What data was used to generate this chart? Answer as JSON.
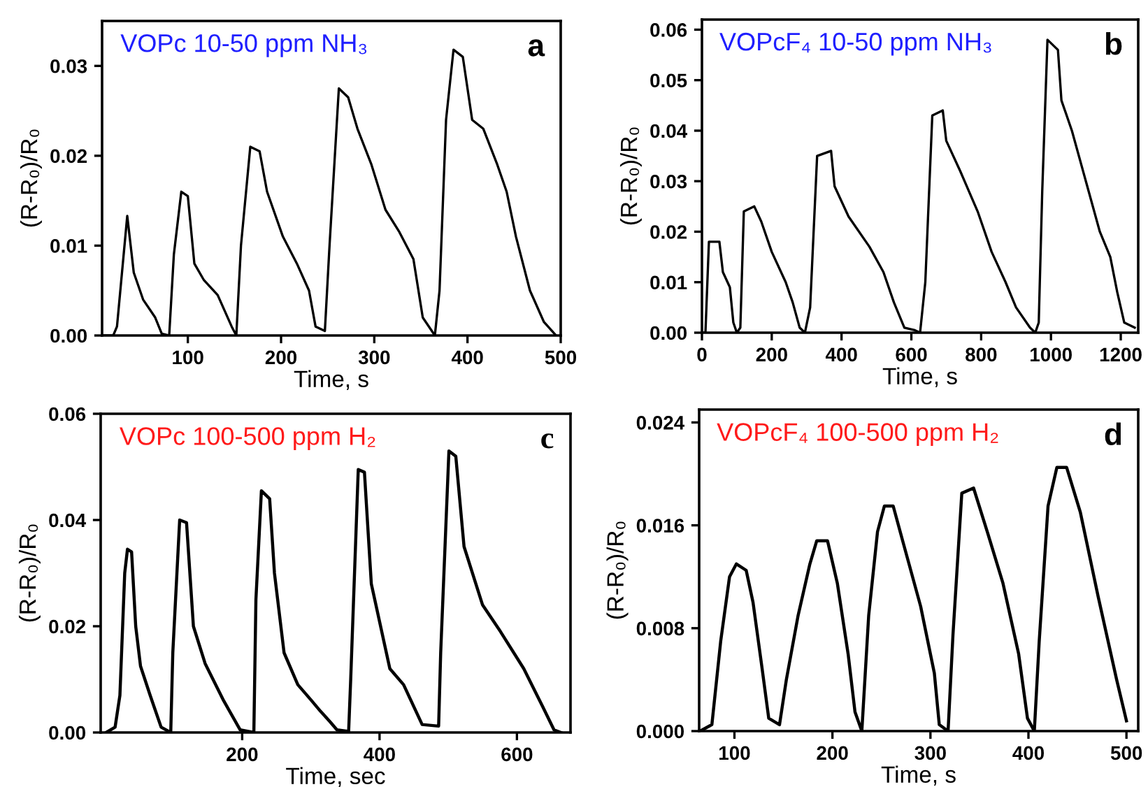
{
  "chart_data": [
    {
      "type": "line",
      "title": "VOPc 10-50 ppm NH₃",
      "annotations": [
        "a"
      ],
      "xlabel": "Time, s",
      "ylabel": "(R-R₀)/R₀",
      "xlim": [
        8,
        500
      ],
      "xticks": [
        100,
        200,
        300,
        400,
        500
      ],
      "ylim": [
        0,
        0.035
      ],
      "yticks": [
        {
          "value": 0,
          "label": "0.00"
        },
        {
          "value": 0.01,
          "label": "0.01"
        },
        {
          "value": 0.02,
          "label": "0.02"
        },
        {
          "value": 0.03,
          "label": "0.03"
        }
      ],
      "grid": false,
      "legend": false,
      "series": [
        {
          "color": "#000000",
          "x": [
            10,
            20,
            24,
            35,
            42,
            52,
            65,
            72,
            80,
            85,
            93,
            100,
            107,
            117,
            132,
            147,
            152,
            157,
            167,
            177,
            185,
            202,
            217,
            230,
            237,
            247,
            252,
            262,
            272,
            282,
            297,
            312,
            327,
            342,
            352,
            365,
            370,
            377,
            385,
            395,
            405,
            417,
            432,
            442,
            452,
            467,
            482,
            495
          ],
          "values": [
            0,
            0,
            0.001,
            0.0133,
            0.007,
            0.004,
            0.002,
            0.0002,
            0,
            0.009,
            0.016,
            0.0155,
            0.008,
            0.0062,
            0.0045,
            0.001,
            0,
            0.01,
            0.021,
            0.0205,
            0.016,
            0.011,
            0.008,
            0.005,
            0.001,
            0.0005,
            0.01,
            0.0275,
            0.0265,
            0.023,
            0.019,
            0.014,
            0.0115,
            0.0085,
            0.002,
            0,
            0.005,
            0.024,
            0.0318,
            0.031,
            0.024,
            0.023,
            0.019,
            0.016,
            0.011,
            0.005,
            0.0015,
            0
          ]
        }
      ]
    },
    {
      "type": "line",
      "title": "VOPcF₄ 10-50 ppm NH₃",
      "annotations": [
        "b"
      ],
      "xlabel": "Time, s",
      "ylabel": "(R-R₀)/R₀",
      "xlim": [
        0,
        1250
      ],
      "xticks": [
        0,
        200,
        400,
        600,
        800,
        1000,
        1200
      ],
      "ylim": [
        0,
        0.062
      ],
      "yticks": [
        {
          "value": 0,
          "label": "0.00"
        },
        {
          "value": 0.01,
          "label": "0.01"
        },
        {
          "value": 0.02,
          "label": "0.02"
        },
        {
          "value": 0.03,
          "label": "0.03"
        },
        {
          "value": 0.04,
          "label": "0.04"
        },
        {
          "value": 0.05,
          "label": "0.05"
        },
        {
          "value": 0.06,
          "label": "0.06"
        }
      ],
      "grid": false,
      "legend": false,
      "series": [
        {
          "color": "#000000",
          "x": [
            0,
            10,
            20,
            50,
            60,
            80,
            90,
            100,
            110,
            120,
            150,
            170,
            200,
            240,
            260,
            280,
            295,
            310,
            330,
            370,
            380,
            420,
            480,
            520,
            550,
            580,
            610,
            625,
            640,
            660,
            690,
            700,
            740,
            790,
            830,
            870,
            900,
            940,
            955,
            965,
            975,
            990,
            1020,
            1030,
            1060,
            1100,
            1140,
            1170,
            1190,
            1210,
            1240
          ],
          "values": [
            0,
            0,
            0.018,
            0.018,
            0.012,
            0.009,
            0.002,
            0,
            0.001,
            0.024,
            0.025,
            0.022,
            0.016,
            0.01,
            0.006,
            0.001,
            0,
            0.005,
            0.035,
            0.036,
            0.029,
            0.023,
            0.017,
            0.012,
            0.006,
            0.001,
            0.0005,
            0,
            0.01,
            0.043,
            0.044,
            0.038,
            0.032,
            0.024,
            0.016,
            0.01,
            0.005,
            0.001,
            0,
            0.002,
            0.028,
            0.058,
            0.056,
            0.046,
            0.04,
            0.03,
            0.02,
            0.015,
            0.008,
            0.002,
            0.001
          ]
        }
      ]
    },
    {
      "type": "line",
      "title": "VOPc 100-500 ppm H₂",
      "annotations": [
        "c"
      ],
      "xlabel": "Time, sec",
      "ylabel": "(R-R₀)/R₀",
      "xlim": [
        -6,
        678
      ],
      "xticks": [
        200,
        400,
        600
      ],
      "ylim": [
        0,
        0.06
      ],
      "yticks": [
        {
          "value": 0,
          "label": "0.00"
        },
        {
          "value": 0.02,
          "label": "0.02"
        },
        {
          "value": 0.04,
          "label": "0.04"
        },
        {
          "value": 0.06,
          "label": "0.06"
        }
      ],
      "grid": false,
      "legend": false,
      "series": [
        {
          "color": "#000000",
          "x": [
            2,
            15,
            22,
            29,
            33,
            39,
            45,
            52,
            66,
            82,
            96,
            99,
            109,
            119,
            129,
            146,
            173,
            197,
            217,
            220,
            228,
            240,
            247,
            261,
            281,
            301,
            314,
            328,
            338,
            355,
            358,
            369,
            378,
            388,
            415,
            435,
            462,
            486,
            489,
            501,
            511,
            523,
            550,
            576,
            610,
            637,
            654,
            664
          ],
          "values": [
            0,
            0.001,
            0.007,
            0.03,
            0.0345,
            0.034,
            0.02,
            0.0125,
            0.007,
            0.001,
            0,
            0.015,
            0.04,
            0.0395,
            0.02,
            0.013,
            0.006,
            0.0005,
            0,
            0.025,
            0.0455,
            0.044,
            0.03,
            0.015,
            0.009,
            0.006,
            0.004,
            0.002,
            0.0005,
            0.0002,
            0.01,
            0.0495,
            0.049,
            0.028,
            0.012,
            0.009,
            0.0015,
            0.0012,
            0.015,
            0.053,
            0.052,
            0.035,
            0.024,
            0.019,
            0.012,
            0.005,
            0.0005,
            0
          ]
        }
      ]
    },
    {
      "type": "line",
      "title": "VOPcF₄ 100-500 ppm H₂",
      "annotations": [
        "d"
      ],
      "xlabel": "Time, s",
      "ylabel": "(R-R₀)/R₀",
      "xlim": [
        64,
        512
      ],
      "xticks": [
        100,
        200,
        300,
        400,
        500
      ],
      "ylim": [
        0,
        0.025
      ],
      "yticks": [
        {
          "value": 0,
          "label": "0.000"
        },
        {
          "value": 0.008,
          "label": "0.008"
        },
        {
          "value": 0.016,
          "label": "0.016"
        },
        {
          "value": 0.024,
          "label": "0.024"
        }
      ],
      "grid": false,
      "legend": false,
      "series": [
        {
          "color": "#000000",
          "x": [
            65,
            77,
            86,
            95,
            102,
            112,
            119,
            128,
            135,
            146,
            153,
            165,
            177,
            184,
            195,
            205,
            216,
            223,
            230,
            237,
            246,
            253,
            262,
            272,
            290,
            304,
            309,
            318,
            323,
            332,
            344,
            358,
            374,
            390,
            399,
            406,
            411,
            420,
            429,
            439,
            453,
            471,
            490,
            500
          ],
          "values": [
            0,
            0.0005,
            0.007,
            0.012,
            0.013,
            0.0125,
            0.01,
            0.005,
            0.001,
            0.0005,
            0.004,
            0.009,
            0.013,
            0.0148,
            0.0148,
            0.0115,
            0.006,
            0.0015,
            0,
            0.009,
            0.0155,
            0.0175,
            0.0175,
            0.0147,
            0.0097,
            0.0045,
            0.0005,
            0,
            0.0075,
            0.0185,
            0.0189,
            0.0155,
            0.0115,
            0.006,
            0.001,
            0,
            0.007,
            0.0175,
            0.0205,
            0.0205,
            0.017,
            0.0105,
            0.004,
            0.0008
          ]
        }
      ]
    }
  ]
}
